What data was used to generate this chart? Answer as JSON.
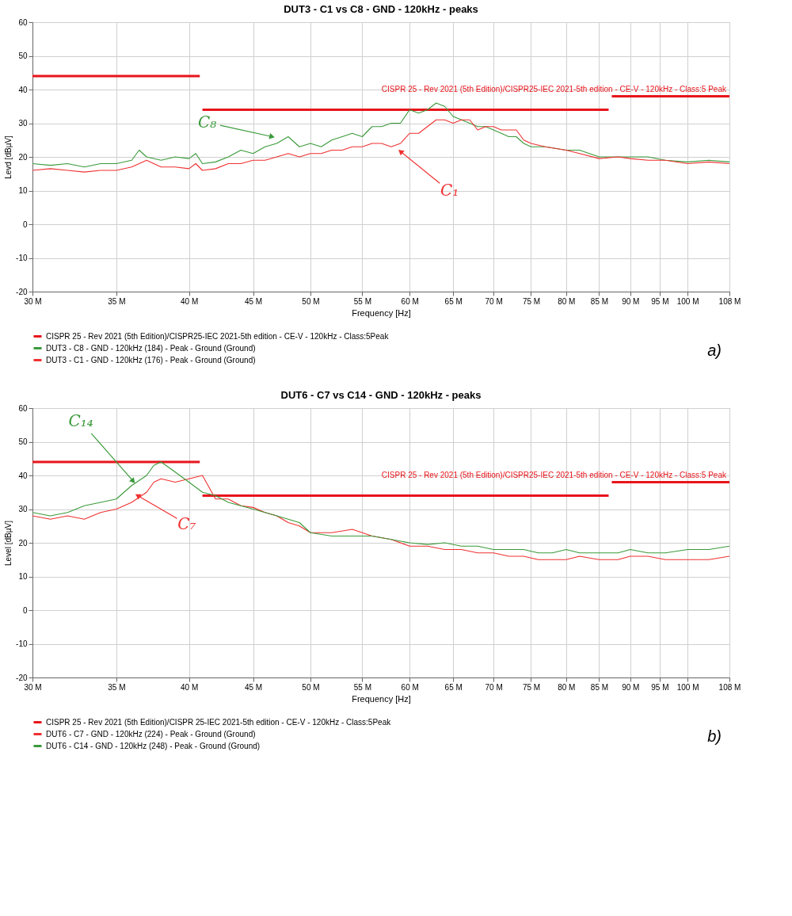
{
  "chart_data": [
    {
      "type": "line",
      "title": "DUT3 - C1 vs C8 - GND - 120kHz - peaks",
      "xlabel": "Frequency [Hz]",
      "ylabel": "Levd [dBµV]",
      "log": "x",
      "xlim": [
        30000000,
        108000000
      ],
      "xticks": [
        {
          "value": 30000000,
          "label": "30 M"
        },
        {
          "value": 35000000,
          "label": "35 M"
        },
        {
          "value": 40000000,
          "label": "40 M"
        },
        {
          "value": 45000000,
          "label": "45 M"
        },
        {
          "value": 50000000,
          "label": "50 M"
        },
        {
          "value": 55000000,
          "label": "55 M"
        },
        {
          "value": 60000000,
          "label": "60 M"
        },
        {
          "value": 65000000,
          "label": "65 M"
        },
        {
          "value": 70000000,
          "label": "70 M"
        },
        {
          "value": 75000000,
          "label": "75 M"
        },
        {
          "value": 80000000,
          "label": "80 M"
        },
        {
          "value": 85000000,
          "label": "85 M"
        },
        {
          "value": 90000000,
          "label": "90 M"
        },
        {
          "value": 95000000,
          "label": "95 M"
        },
        {
          "value": 100000000,
          "label": "100 M"
        },
        {
          "value": 108000000,
          "label": "108 M"
        }
      ],
      "ylim": [
        -20,
        60
      ],
      "yticks": [
        -20,
        -10,
        0,
        10,
        20,
        30,
        40,
        50,
        60
      ],
      "grid": true,
      "legend": "bottom",
      "series": [
        {
          "name": "CISPR 25 - Rev 2021 (5th Edition)/CISPR25-IEC 2021-5th edition - CE-V - 120kHz - Class:5Peak",
          "color": "#e8141b",
          "x": [
            30000000,
            40800000,
            40900000,
            41000000,
            86500000,
            86700000,
            87000000,
            108000000
          ],
          "values": [
            44,
            44,
            null,
            34,
            34,
            null,
            38,
            38
          ]
        },
        {
          "name": "DUT3 - C8 - GND - 120kHz (184) - Peak - Ground (Ground)",
          "color": "#3a9a3a",
          "x": [
            30000000,
            31000000,
            32000000,
            33000000,
            34000000,
            35000000,
            36000000,
            36500000,
            37000000,
            38000000,
            39000000,
            40000000,
            40500000,
            41000000,
            42000000,
            43000000,
            44000000,
            45000000,
            46000000,
            47000000,
            48000000,
            49000000,
            50000000,
            51000000,
            52000000,
            53000000,
            54000000,
            55000000,
            56000000,
            57000000,
            58000000,
            59000000,
            60000000,
            61000000,
            62000000,
            63000000,
            64000000,
            65000000,
            66000000,
            67000000,
            68000000,
            69000000,
            70000000,
            71000000,
            72000000,
            73000000,
            74000000,
            75000000,
            77000000,
            80000000,
            82000000,
            85000000,
            88000000,
            90000000,
            93000000,
            96000000,
            100000000,
            104000000,
            108000000
          ],
          "values": [
            18,
            17.5,
            18,
            17,
            18,
            18,
            19,
            22,
            20,
            19,
            20,
            19.5,
            21,
            18,
            18.5,
            20,
            22,
            21,
            23,
            24,
            26,
            23,
            24,
            23,
            25,
            26,
            27,
            26,
            29,
            29,
            30,
            30,
            34,
            33,
            34,
            36,
            35,
            32,
            31,
            30,
            29,
            29,
            28,
            27,
            26,
            26,
            24,
            23,
            23,
            22,
            22,
            20,
            20,
            20,
            20,
            19,
            18.5,
            19,
            18.5
          ]
        },
        {
          "name": "DUT3 - C1 - GND - 120kHz (176) - Peak - Ground (Ground)",
          "color": "#f03030",
          "x": [
            30000000,
            31000000,
            32000000,
            33000000,
            34000000,
            35000000,
            36000000,
            37000000,
            38000000,
            39000000,
            40000000,
            40500000,
            41000000,
            42000000,
            43000000,
            44000000,
            45000000,
            46000000,
            47000000,
            48000000,
            49000000,
            50000000,
            51000000,
            52000000,
            53000000,
            54000000,
            55000000,
            56000000,
            57000000,
            58000000,
            59000000,
            60000000,
            61000000,
            62000000,
            63000000,
            64000000,
            65000000,
            66000000,
            67000000,
            68000000,
            69000000,
            70000000,
            71000000,
            72000000,
            73000000,
            74000000,
            75000000,
            77000000,
            80000000,
            82000000,
            85000000,
            88000000,
            90000000,
            93000000,
            96000000,
            100000000,
            104000000,
            108000000
          ],
          "values": [
            16,
            16.5,
            16,
            15.5,
            16,
            16,
            17,
            19,
            17,
            17,
            16.5,
            18,
            16,
            16.5,
            18,
            18,
            19,
            19,
            20,
            21,
            20,
            21,
            21,
            22,
            22,
            23,
            23,
            24,
            24,
            23,
            24,
            27,
            27,
            29,
            31,
            31,
            30,
            31,
            31,
            28,
            29,
            29,
            28,
            28,
            28,
            25,
            24,
            23,
            22,
            21,
            19.5,
            20,
            19.5,
            19,
            19,
            18,
            18.5,
            18
          ]
        }
      ],
      "annotations": [
        {
          "text": "CISPR 25 - Rev 2021 (5th Edition)/CISPR25-IEC 2021-5th edition - CE-V - 120kHz - Class:5 Peak",
          "x": 108000000,
          "y": 38
        },
        {
          "text": "C₈",
          "x": 46600000,
          "y": 26
        },
        {
          "text": "C₁",
          "x": 59000000,
          "y": 21.6
        },
        "a)"
      ]
    },
    {
      "type": "line",
      "title": "DUT6 - C7 vs C14 - GND - 120kHz - peaks",
      "xlabel": "Frequency [Hz]",
      "ylabel": "Level [dBµV]",
      "log": "x",
      "xlim": [
        30000000,
        108000000
      ],
      "xticks": [
        {
          "value": 30000000,
          "label": "30 M"
        },
        {
          "value": 35000000,
          "label": "35 M"
        },
        {
          "value": 40000000,
          "label": "40 M"
        },
        {
          "value": 45000000,
          "label": "45 M"
        },
        {
          "value": 50000000,
          "label": "50 M"
        },
        {
          "value": 55000000,
          "label": "55 M"
        },
        {
          "value": 60000000,
          "label": "60 M"
        },
        {
          "value": 65000000,
          "label": "65 M"
        },
        {
          "value": 70000000,
          "label": "70 M"
        },
        {
          "value": 75000000,
          "label": "75 M"
        },
        {
          "value": 80000000,
          "label": "80 M"
        },
        {
          "value": 85000000,
          "label": "85 M"
        },
        {
          "value": 90000000,
          "label": "90 M"
        },
        {
          "value": 95000000,
          "label": "95 M"
        },
        {
          "value": 100000000,
          "label": "100 M"
        },
        {
          "value": 108000000,
          "label": "108 M"
        }
      ],
      "ylim": [
        -20,
        60
      ],
      "yticks": [
        -20,
        -10,
        0,
        10,
        20,
        30,
        40,
        50,
        60
      ],
      "grid": true,
      "legend": "bottom",
      "series": [
        {
          "name": "CISPR 25 - Rev 2021 (5th Edition)/CISPR 25-IEC 2021-5th edition - CE-V - 120kHz - Class:5Peak",
          "color": "#e8141b",
          "x": [
            30000000,
            40800000,
            40900000,
            41000000,
            86500000,
            86700000,
            87000000,
            108000000
          ],
          "values": [
            44,
            44,
            null,
            34,
            34,
            null,
            38,
            38
          ]
        },
        {
          "name": "DUT6 - C7 - GND - 120kHz (224) - Peak - Ground (Ground)",
          "color": "#f03030",
          "x": [
            30000000,
            31000000,
            32000000,
            33000000,
            34000000,
            35000000,
            36000000,
            37000000,
            37500000,
            38000000,
            39000000,
            40000000,
            41000000,
            42000000,
            43000000,
            44000000,
            45000000,
            46000000,
            47000000,
            48000000,
            49000000,
            50000000,
            52000000,
            54000000,
            56000000,
            58000000,
            60000000,
            62000000,
            64000000,
            66000000,
            68000000,
            70000000,
            72000000,
            74000000,
            76000000,
            78000000,
            80000000,
            82000000,
            85000000,
            88000000,
            90000000,
            93000000,
            96000000,
            100000000,
            104000000,
            108000000
          ],
          "values": [
            28,
            27,
            28,
            27,
            29,
            30,
            32,
            35,
            38,
            39,
            38,
            39,
            40,
            33,
            33,
            31,
            30.5,
            29,
            28,
            26,
            25,
            23,
            23,
            24,
            22,
            21,
            19,
            19,
            18,
            18,
            17,
            17,
            16,
            16,
            15,
            15,
            15,
            16,
            15,
            15,
            16,
            16,
            15,
            15,
            15,
            16
          ]
        },
        {
          "name": "DUT6 - C14 - GND - 120kHz (248) - Peak - Ground (Ground)",
          "color": "#3a9a3a",
          "x": [
            30000000,
            31000000,
            32000000,
            33000000,
            34000000,
            35000000,
            36000000,
            37000000,
            37500000,
            38000000,
            39000000,
            40000000,
            41000000,
            42000000,
            43000000,
            44000000,
            45000000,
            46000000,
            47000000,
            48000000,
            49000000,
            50000000,
            52000000,
            54000000,
            56000000,
            58000000,
            60000000,
            62000000,
            64000000,
            66000000,
            68000000,
            70000000,
            72000000,
            74000000,
            76000000,
            78000000,
            80000000,
            82000000,
            85000000,
            88000000,
            90000000,
            93000000,
            96000000,
            100000000,
            104000000,
            108000000
          ],
          "values": [
            29,
            28,
            29,
            31,
            32,
            33,
            37,
            40,
            43,
            44,
            41,
            38,
            35,
            34,
            32,
            31,
            30,
            29,
            28,
            27,
            26,
            23,
            22,
            22,
            22,
            21,
            20,
            19.5,
            20,
            19,
            19,
            18,
            18,
            18,
            17,
            17,
            18,
            17,
            17,
            17,
            18,
            17,
            17,
            18,
            18,
            19
          ]
        }
      ],
      "annotations": [
        {
          "text": "CISPR 25 - Rev 2021 (5th Edition)/CISPR25-IEC 2021-5th edition - CE-V - 120kHz - Class:5 Peak",
          "x": 108000000,
          "y": 38
        },
        {
          "text": "C₁₄",
          "x": 36100000,
          "y": 38.3
        },
        {
          "text": "C₇",
          "x": 36400000,
          "y": 34
        },
        "b)"
      ]
    }
  ]
}
